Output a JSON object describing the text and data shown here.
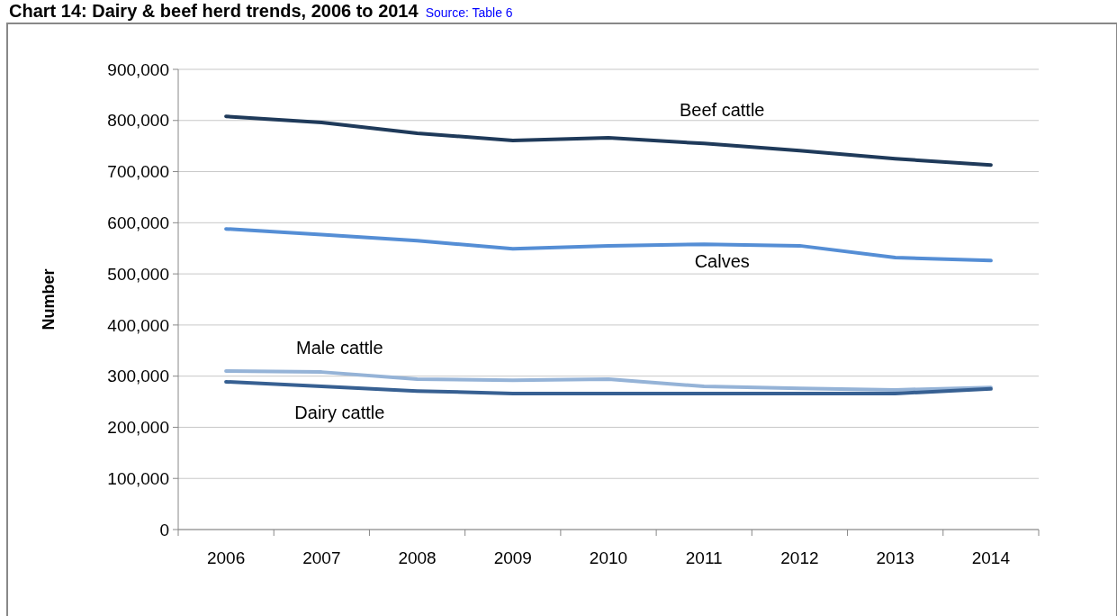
{
  "chart_data": {
    "type": "line",
    "title": "Chart 14: Dairy & beef herd trends, 2006 to 2014",
    "annotations": [
      "Source: Table 6"
    ],
    "ylabel": "Number",
    "categories": [
      "2006",
      "2007",
      "2008",
      "2009",
      "2010",
      "2011",
      "2012",
      "2013",
      "2014"
    ],
    "series": [
      {
        "name": "Beef cattle",
        "color": "#1f3a5a",
        "values": [
          808000,
          796000,
          775000,
          761000,
          766000,
          755000,
          741000,
          725000,
          713000
        ]
      },
      {
        "name": "Calves",
        "color": "#558ed5",
        "values": [
          588000,
          577000,
          565000,
          549000,
          555000,
          558000,
          555000,
          532000,
          526000
        ]
      },
      {
        "name": "Male cattle",
        "color": "#95b3d7",
        "values": [
          310000,
          308000,
          294000,
          292000,
          294000,
          280000,
          276000,
          273000,
          278000
        ]
      },
      {
        "name": "Dairy cattle",
        "color": "#376092",
        "values": [
          289000,
          280000,
          271000,
          266000,
          266000,
          266000,
          266000,
          266000,
          275000
        ]
      }
    ],
    "ylim": [
      0,
      900000
    ],
    "yticks": [
      {
        "value": 0,
        "label": "0"
      },
      {
        "value": 100000,
        "label": "100,000"
      },
      {
        "value": 200000,
        "label": "200,000"
      },
      {
        "value": 300000,
        "label": "300,000"
      },
      {
        "value": 400000,
        "label": "400,000"
      },
      {
        "value": 500000,
        "label": "500,000"
      },
      {
        "value": 600000,
        "label": "600,000"
      },
      {
        "value": 700000,
        "label": "700,000"
      },
      {
        "value": 800000,
        "label": "800,000"
      },
      {
        "value": 900000,
        "label": "900,000"
      }
    ],
    "grid": "y",
    "marker": "none",
    "line_style": "solid"
  }
}
